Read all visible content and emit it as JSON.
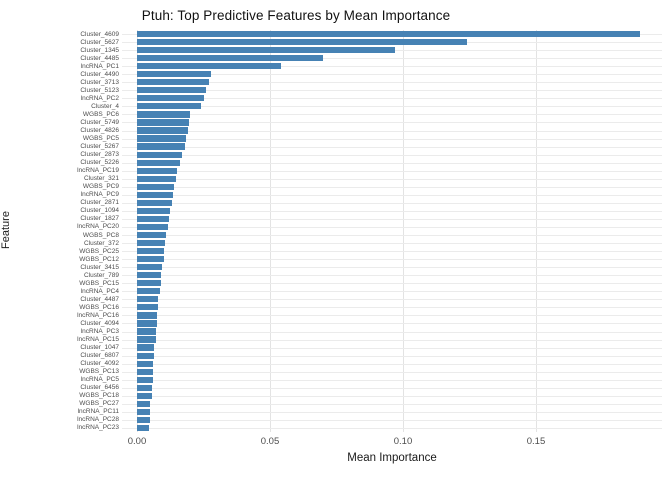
{
  "title": "Ptuh: Top Predictive Features by Mean Importance",
  "axes": {
    "x_title": "Mean Importance",
    "y_title": "Feature"
  },
  "colors": {
    "bar": "#4682B4",
    "grid": "#ebebeb",
    "tick_text": "#4d4d4d",
    "background": "#ffffff"
  },
  "chart_data": {
    "type": "bar",
    "orientation": "horizontal",
    "title": "Ptuh: Top Predictive Features by Mean Importance",
    "xlabel": "Mean Importance",
    "ylabel": "Feature",
    "xlim": [
      0,
      0.196
    ],
    "x_ticks": [
      0.0,
      0.05,
      0.1,
      0.15
    ],
    "x_tick_labels": [
      "0.00",
      "0.05",
      "0.10",
      "0.15"
    ],
    "grid": true,
    "legend": false,
    "bar_color": "#4682B4",
    "categories": [
      "Cluster_4609",
      "Cluster_5627",
      "Cluster_1345",
      "Cluster_4485",
      "lncRNA_PC1",
      "Cluster_4490",
      "Cluster_3713",
      "Cluster_5123",
      "lncRNA_PC2",
      "Cluster_4",
      "WGBS_PC6",
      "Cluster_5749",
      "Cluster_4826",
      "WGBS_PC5",
      "Cluster_5267",
      "Cluster_2873",
      "Cluster_5226",
      "lncRNA_PC19",
      "Cluster_321",
      "WGBS_PC9",
      "lncRNA_PC9",
      "Cluster_2871",
      "Cluster_1094",
      "Cluster_1827",
      "lncRNA_PC20",
      "WGBS_PC8",
      "Cluster_372",
      "WGBS_PC25",
      "WGBS_PC12",
      "Cluster_3415",
      "Cluster_789",
      "WGBS_PC15",
      "lncRNA_PC4",
      "Cluster_4487",
      "WGBS_PC16",
      "lncRNA_PC16",
      "Cluster_4094",
      "lncRNA_PC3",
      "lncRNA_PC15",
      "Cluster_1047",
      "Cluster_6807",
      "Cluster_4092",
      "WGBS_PC13",
      "lncRNA_PC5",
      "Cluster_6456",
      "WGBS_PC18",
      "WGBS_PC27",
      "lncRNA_PC11",
      "lncRNA_PC28",
      "lncRNA_PC23"
    ],
    "values": [
      0.189,
      0.124,
      0.097,
      0.07,
      0.054,
      0.028,
      0.027,
      0.026,
      0.025,
      0.024,
      0.02,
      0.0195,
      0.019,
      0.0185,
      0.018,
      0.017,
      0.016,
      0.015,
      0.0145,
      0.014,
      0.0135,
      0.013,
      0.0125,
      0.012,
      0.0115,
      0.011,
      0.0105,
      0.01,
      0.01,
      0.0095,
      0.009,
      0.009,
      0.0085,
      0.008,
      0.008,
      0.0075,
      0.0075,
      0.007,
      0.007,
      0.0065,
      0.0065,
      0.006,
      0.006,
      0.006,
      0.0055,
      0.0055,
      0.005,
      0.005,
      0.005,
      0.0045
    ]
  }
}
